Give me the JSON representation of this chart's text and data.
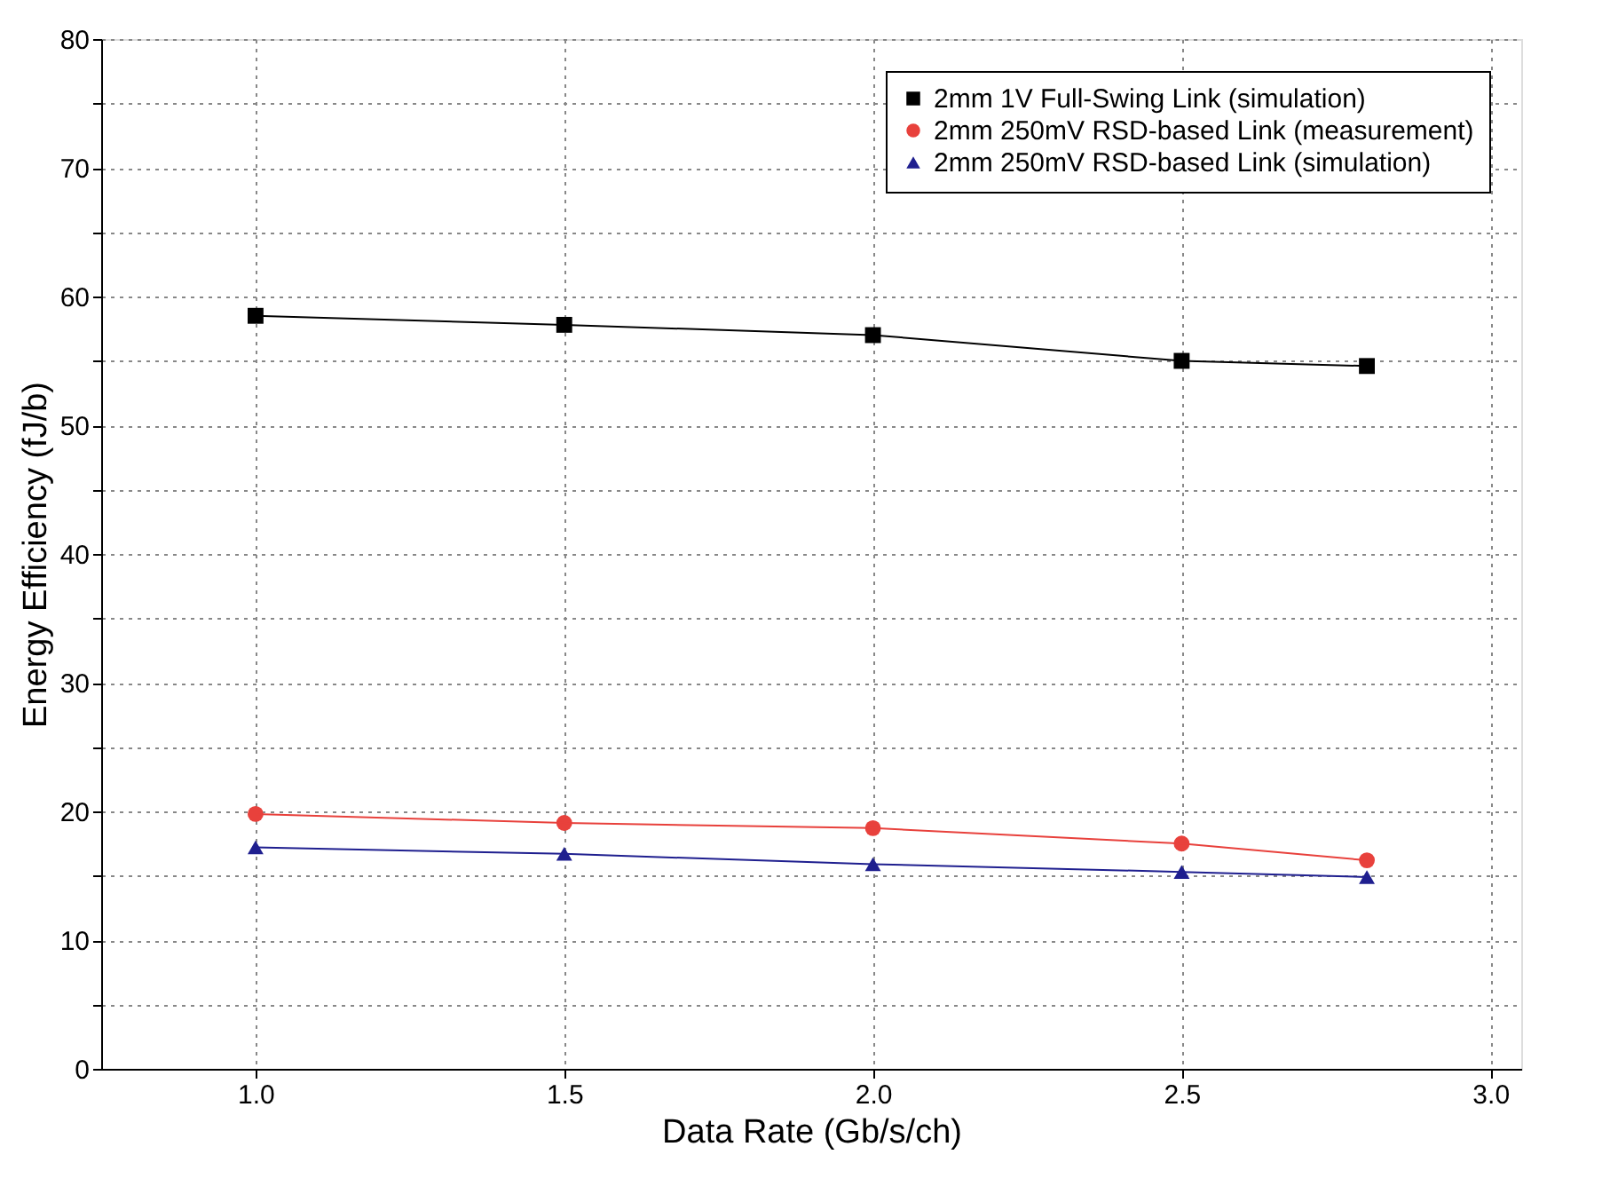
{
  "chart_data": {
    "type": "line",
    "xlabel": "Data Rate (Gb/s/ch)",
    "ylabel": "Energy Efficiency (fJ/b)",
    "x": [
      1.0,
      1.5,
      2.0,
      2.5,
      2.8
    ],
    "series": [
      {
        "name": "2mm 1V Full-Swing Link (simulation)",
        "color": "#000000",
        "marker": "square",
        "values": [
          58.5,
          57.8,
          57.0,
          55.0,
          54.6
        ]
      },
      {
        "name": "2mm 250mV RSD-based Link (measurement)",
        "color": "#e8413c",
        "marker": "circle",
        "values": [
          19.8,
          19.1,
          18.7,
          17.5,
          16.2
        ]
      },
      {
        "name": "2mm 250mV RSD-based Link (simulation)",
        "color": "#1f1f8f",
        "marker": "triangle",
        "values": [
          17.2,
          16.7,
          15.9,
          15.3,
          14.9
        ]
      }
    ],
    "xlim": [
      0.75,
      3.05
    ],
    "xticks": [
      {
        "value": 1,
        "label": "1.0"
      },
      {
        "value": 1.5,
        "label": "1.5"
      },
      {
        "value": 2,
        "label": "2.0"
      },
      {
        "value": 2.5,
        "label": "2.5"
      },
      {
        "value": 3,
        "label": "3.0"
      }
    ],
    "ylim": [
      0,
      80
    ],
    "yticks": [
      0,
      {
        "value": 5,
        "label": null
      },
      10,
      {
        "value": 15,
        "label": null
      },
      20,
      {
        "value": 25,
        "label": null
      },
      30,
      {
        "value": 35,
        "label": null
      },
      40,
      {
        "value": 45,
        "label": null
      },
      50,
      {
        "value": 55,
        "label": null
      },
      60,
      {
        "value": 65,
        "label": null
      },
      70,
      {
        "value": 75,
        "label": null
      },
      80
    ],
    "grid": true,
    "legend": "top right",
    "line_style": "solid"
  }
}
